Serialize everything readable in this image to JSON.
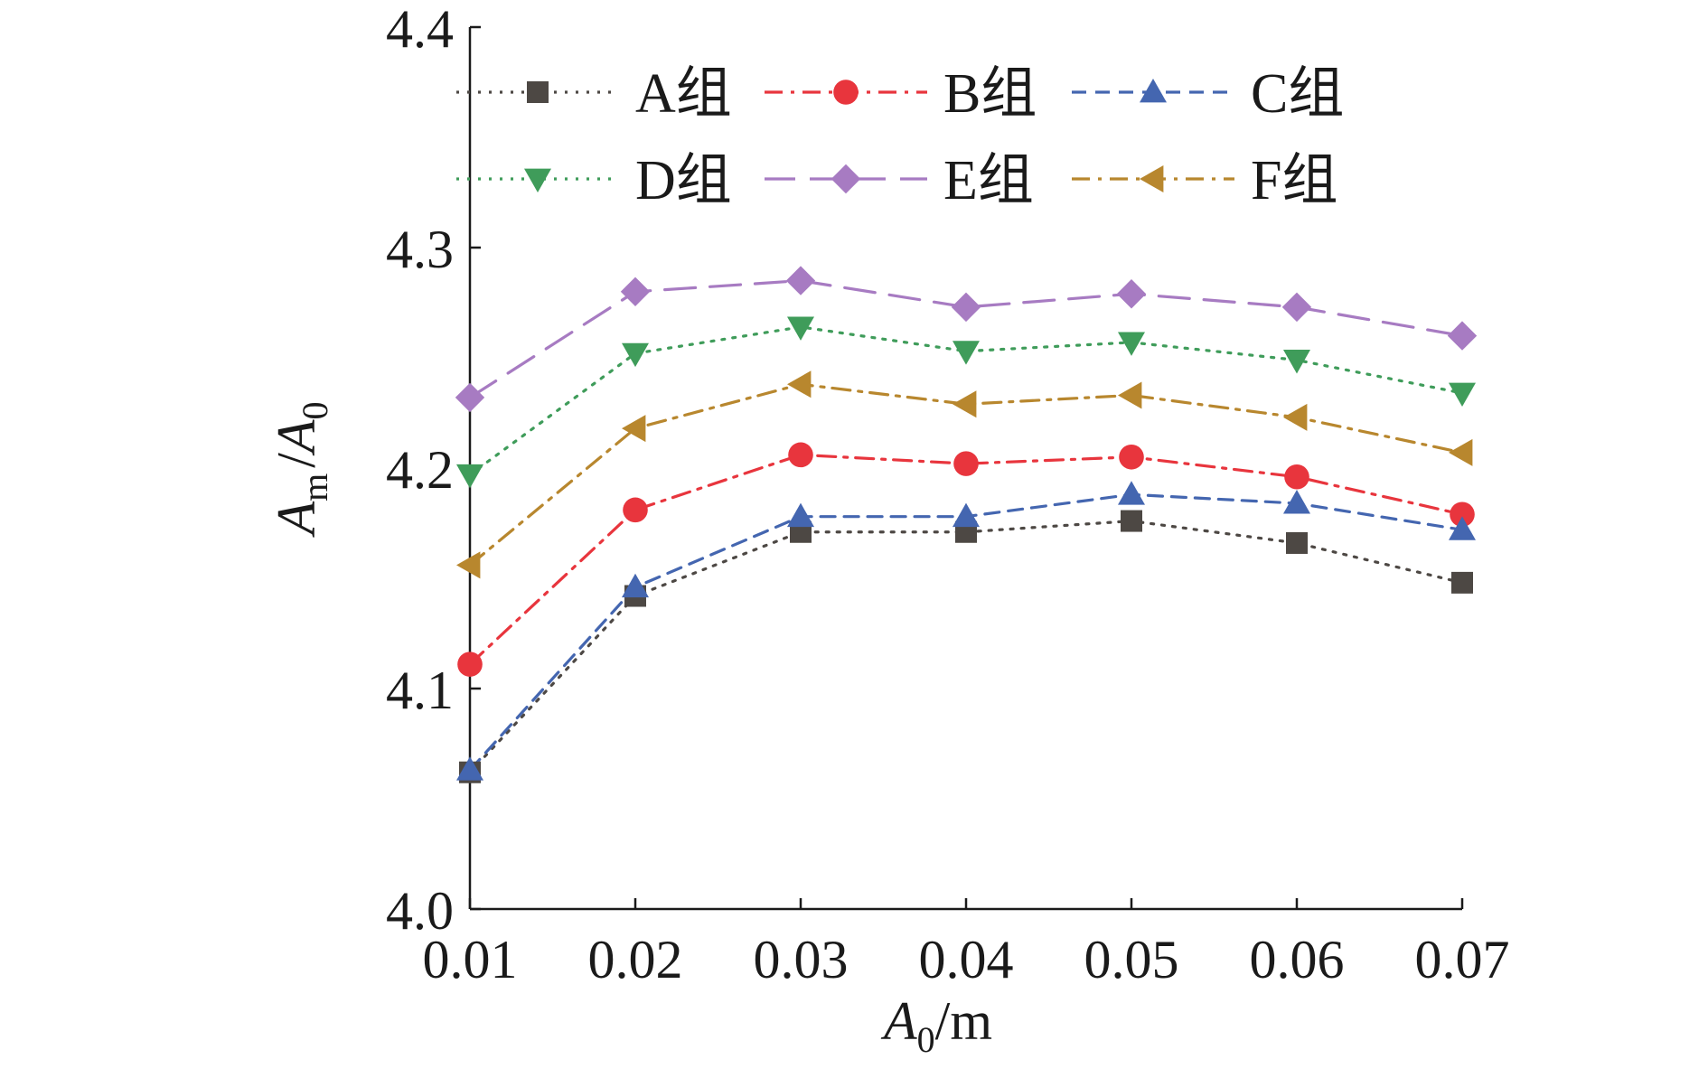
{
  "chart_data": {
    "type": "line",
    "title": "",
    "xlabel": "A0/m",
    "ylabel": "Am/A0",
    "x": [
      0.01,
      0.02,
      0.03,
      0.04,
      0.05,
      0.06,
      0.07
    ],
    "x_tick_labels": [
      "0.01",
      "0.02",
      "0.03",
      "0.04",
      "0.05",
      "0.06",
      "0.07"
    ],
    "y_ticks": [
      4.0,
      4.1,
      4.2,
      4.3,
      4.4
    ],
    "y_tick_labels": [
      "4.0",
      "4.1",
      "4.2",
      "4.3",
      "4.4"
    ],
    "ylim": [
      4.0,
      4.4
    ],
    "xlim": [
      0.01,
      0.07
    ],
    "grid": false,
    "legend_position": "top",
    "series": [
      {
        "name": "A组",
        "color": "#4d4844",
        "marker": "square",
        "dash": "dot",
        "values": [
          4.062,
          4.142,
          4.171,
          4.171,
          4.176,
          4.166,
          4.148
        ]
      },
      {
        "name": "B组",
        "color": "#e8353d",
        "marker": "circle",
        "dash": "dashdot",
        "values": [
          4.111,
          4.181,
          4.206,
          4.202,
          4.205,
          4.196,
          4.179
        ]
      },
      {
        "name": "C组",
        "color": "#4466b0",
        "marker": "triangle-up",
        "dash": "dash",
        "values": [
          4.063,
          4.146,
          4.178,
          4.178,
          4.188,
          4.184,
          4.172
        ]
      },
      {
        "name": "D组",
        "color": "#3f9c5a",
        "marker": "triangle-down",
        "dash": "dot",
        "values": [
          4.197,
          4.252,
          4.264,
          4.253,
          4.257,
          4.249,
          4.234
        ]
      },
      {
        "name": "E组",
        "color": "#a77bc2",
        "marker": "diamond",
        "dash": "longdash",
        "values": [
          4.232,
          4.28,
          4.285,
          4.273,
          4.279,
          4.273,
          4.26
        ]
      },
      {
        "name": "F组",
        "color": "#b8872e",
        "marker": "triangle-left",
        "dash": "dashdot",
        "values": [
          4.156,
          4.218,
          4.238,
          4.229,
          4.233,
          4.223,
          4.207
        ]
      }
    ]
  }
}
